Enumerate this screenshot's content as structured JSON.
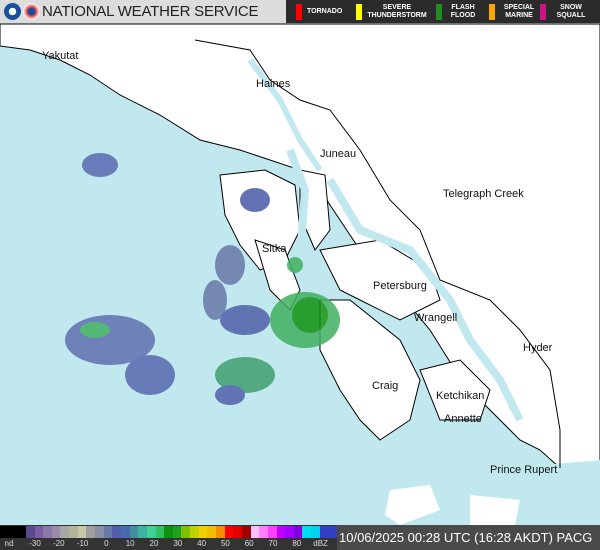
{
  "header": {
    "title": "NATIONAL WEATHER SERVICE",
    "logos": [
      "noaa-logo",
      "nws-logo"
    ]
  },
  "warnings": [
    {
      "label": "TORNADO",
      "color": "#ff0000"
    },
    {
      "label": "SEVERE THUNDERSTORM",
      "color": "#ffff00"
    },
    {
      "label": "FLASH FLOOD",
      "color": "#228b22"
    },
    {
      "label": "SPECIAL MARINE",
      "color": "#ffa500"
    },
    {
      "label": "SNOW SQUALL",
      "color": "#c71585"
    }
  ],
  "cities": [
    "Yakutat",
    "Haines",
    "Juneau",
    "Telegraph Creek",
    "Sitka",
    "Petersburg",
    "Wrangell",
    "Hyder",
    "Craig",
    "Ketchikan",
    "Annette",
    "Prince Rupert"
  ],
  "colors": {
    "sea": "#c2e8ef",
    "land": "#ffffff"
  },
  "legend": {
    "labels": [
      "nd",
      "-30",
      "-20",
      "-10",
      "0",
      "10",
      "20",
      "30",
      "40",
      "50",
      "60",
      "70",
      "80",
      "dBZ"
    ],
    "colors": [
      "#000000",
      "#000000",
      "#000000",
      "#5c4a8e",
      "#7860a0",
      "#8a78aa",
      "#9a8ca8",
      "#a8a8a8",
      "#b4b49c",
      "#c8c8a8",
      "#a0a0a0",
      "#8890a8",
      "#6878a8",
      "#5060a8",
      "#4868b0",
      "#4090a0",
      "#40b0a0",
      "#40d090",
      "#30c060",
      "#109010",
      "#20a020",
      "#80c000",
      "#c0d000",
      "#f0d000",
      "#f0c000",
      "#f09000",
      "#ff0000",
      "#e00000",
      "#a00000",
      "#ffc0ff",
      "#ff80ff",
      "#ff40ff",
      "#c000ff",
      "#a000ff",
      "#8000e0",
      "#00e0f0",
      "#00d0f0",
      "#3040c0",
      "#3040c0"
    ]
  },
  "timestamp": "10/06/2025 00:28 UTC (16:28 AKDT) PACG"
}
